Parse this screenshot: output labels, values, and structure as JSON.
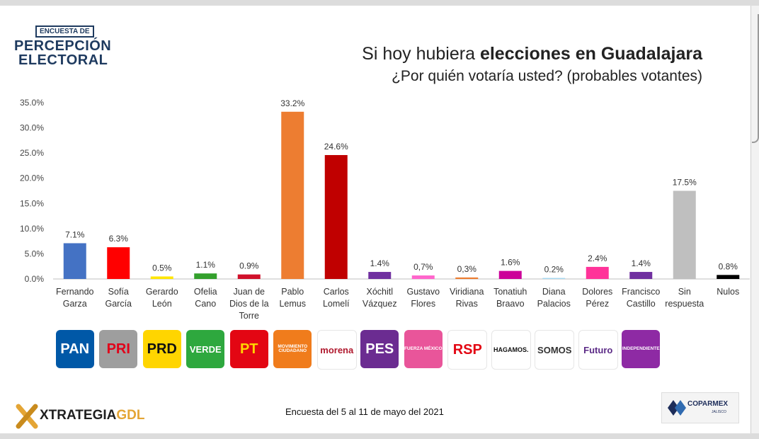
{
  "header": {
    "logo_top": "ENCUESTA DE",
    "logo_line1": "PERCEPCIÓN",
    "logo_line2": "ELECTORAL",
    "title_plain": "Si hoy hubiera ",
    "title_bold": "elecciones en Guadalajara",
    "subtitle": "¿Por quién votaría usted? (probables votantes)"
  },
  "chart_data": {
    "type": "bar",
    "ylim": [
      0,
      35
    ],
    "yticks": [
      "0.0%",
      "5.0%",
      "10.0%",
      "15.0%",
      "20.0%",
      "25.0%",
      "30.0%",
      "35.0%"
    ],
    "grid": false,
    "categories": [
      [
        "Fernando",
        "Garza"
      ],
      [
        "Sofía",
        "García"
      ],
      [
        "Gerardo",
        "León"
      ],
      [
        "Ofelia",
        "Cano"
      ],
      [
        "Juan de",
        "Dios de la",
        "Torre"
      ],
      [
        "Pablo",
        "Lemus"
      ],
      [
        "Carlos",
        "Lomelí"
      ],
      [
        "Xóchitl",
        "Vázquez"
      ],
      [
        "Gustavo",
        "Flores"
      ],
      [
        "Viridiana",
        "Rivas"
      ],
      [
        "Tonatiuh",
        "Braavo"
      ],
      [
        "Diana",
        "Palacios"
      ],
      [
        "Dolores",
        "Pérez"
      ],
      [
        "Francisco",
        "Castillo"
      ],
      [
        "Sin",
        "respuesta"
      ],
      [
        "Nulos"
      ]
    ],
    "values": [
      7.1,
      6.3,
      0.5,
      1.1,
      0.9,
      33.2,
      24.6,
      1.4,
      0.7,
      0.3,
      1.6,
      0.2,
      2.4,
      1.4,
      17.5,
      0.8
    ],
    "data_labels": [
      "7.1%",
      "6.3%",
      "0.5%",
      "1.1%",
      "0.9%",
      "33.2%",
      "24.6%",
      "1.4%",
      "0,7%",
      "0,3%",
      "1.6%",
      "0.2%",
      "2.4%",
      "1.4%",
      "17.5%",
      "0.8%"
    ],
    "colors": [
      "#4472c4",
      "#ff0000",
      "#ffe600",
      "#33a02c",
      "#d0112b",
      "#ed7d31",
      "#c00000",
      "#7030a0",
      "#ff66cc",
      "#ed7d31",
      "#cc0099",
      "#a6d8f0",
      "#ff3399",
      "#7030a0",
      "#bfbfbf",
      "#000000"
    ]
  },
  "parties": [
    {
      "name": "PAN",
      "bg": "#0058a7",
      "fg": "#ffffff"
    },
    {
      "name": "PRI",
      "bg": "#9e9e9e",
      "fg": "#e10019"
    },
    {
      "name": "PRD",
      "bg": "#ffd500",
      "fg": "#111111"
    },
    {
      "name": "VERDE",
      "bg": "#2ea83e",
      "fg": "#ffffff"
    },
    {
      "name": "PT",
      "bg": "#e30613",
      "fg": "#ffd500"
    },
    {
      "name": "MOVIMIENTO CIUDADANO",
      "bg": "#f07c1c",
      "fg": "#ffffff"
    },
    {
      "name": "morena",
      "bg": "#ffffff",
      "fg": "#b0192e"
    },
    {
      "name": "PES",
      "bg": "#6b2c91",
      "fg": "#ffffff"
    },
    {
      "name": "FUERZA MÉXICO",
      "bg": "#e9559a",
      "fg": "#ffffff"
    },
    {
      "name": "RSP",
      "bg": "#ffffff",
      "fg": "#e30613"
    },
    {
      "name": "HAGAMOS.",
      "bg": "#ffffff",
      "fg": "#111111"
    },
    {
      "name": "SOMOS",
      "bg": "#ffffff",
      "fg": "#333333"
    },
    {
      "name": "Futuro",
      "bg": "#ffffff",
      "fg": "#5b2a86"
    },
    {
      "name": "INDEPENDIENTE",
      "bg": "#8e2aa4",
      "fg": "#ffffff"
    }
  ],
  "footer": {
    "note": "Encuesta del 5 al 11 de mayo del 2021",
    "brand_main": "XTRATEGIA",
    "brand_accent": "GDL",
    "sponsor": "COPARMEX",
    "sponsor_sub": "JALISCO"
  }
}
